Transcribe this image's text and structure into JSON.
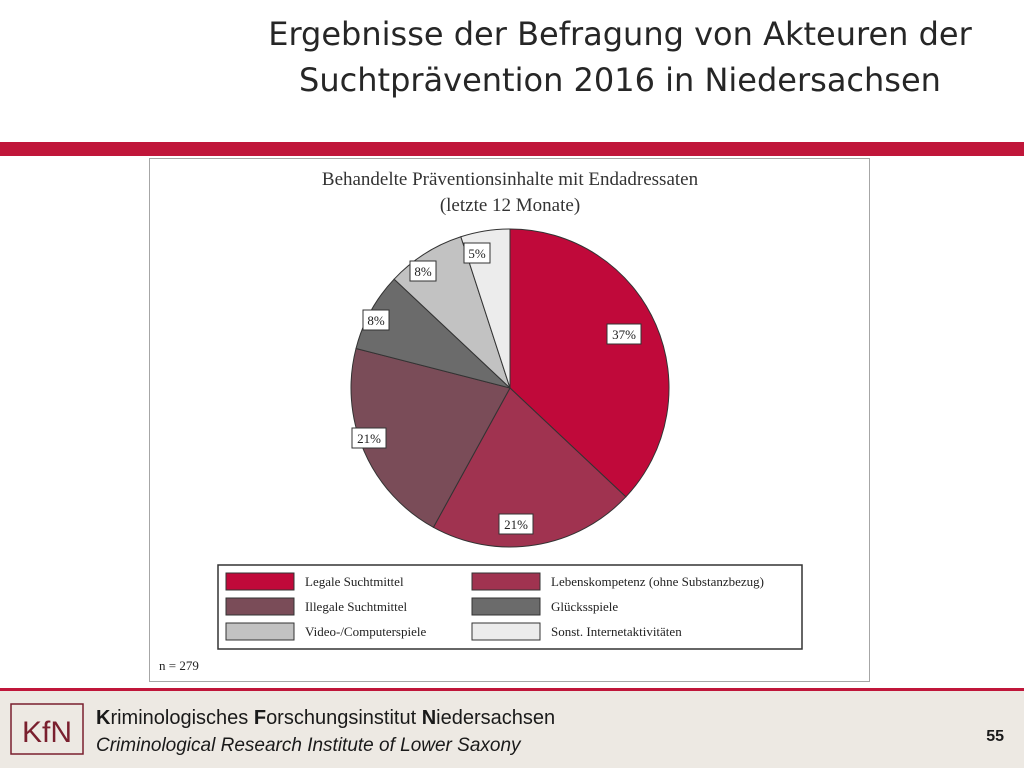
{
  "slide": {
    "title_line1": "Ergebnisse der Befragung von Akteuren der",
    "title_line2": "Suchtprävention 2016 in Niedersachsen",
    "accent_color": "#c0163a"
  },
  "chart_data": {
    "type": "pie",
    "title": "Behandelte Präventionsinhalte mit Endadressaten",
    "subtitle": "(letzte 12 Monate)",
    "categories": [
      "Legale Suchtmittel",
      "Lebenskompetenz (ohne Substanzbezug)",
      "Illegale Suchtmittel",
      "Glücksspiele",
      "Video-/Computerspiele",
      "Sonst. Internetaktivitäten"
    ],
    "values": [
      37,
      21,
      21,
      8,
      8,
      5
    ],
    "labels": [
      "37%",
      "21%",
      "21%",
      "8%",
      "8%",
      "5%"
    ],
    "colors": [
      "#c0093a",
      "#a03350",
      "#7a4c58",
      "#6b6b6b",
      "#c2c2c2",
      "#ececec"
    ],
    "note": "n = 279",
    "legend_position": "bottom"
  },
  "footer": {
    "logo_text": "KfN",
    "line1_parts": [
      "K",
      "riminologisches ",
      "F",
      "orschungsinstitut ",
      "N",
      "iedersachsen"
    ],
    "line2": "Criminological Research Institute of Lower Saxony",
    "page_number": "55"
  }
}
